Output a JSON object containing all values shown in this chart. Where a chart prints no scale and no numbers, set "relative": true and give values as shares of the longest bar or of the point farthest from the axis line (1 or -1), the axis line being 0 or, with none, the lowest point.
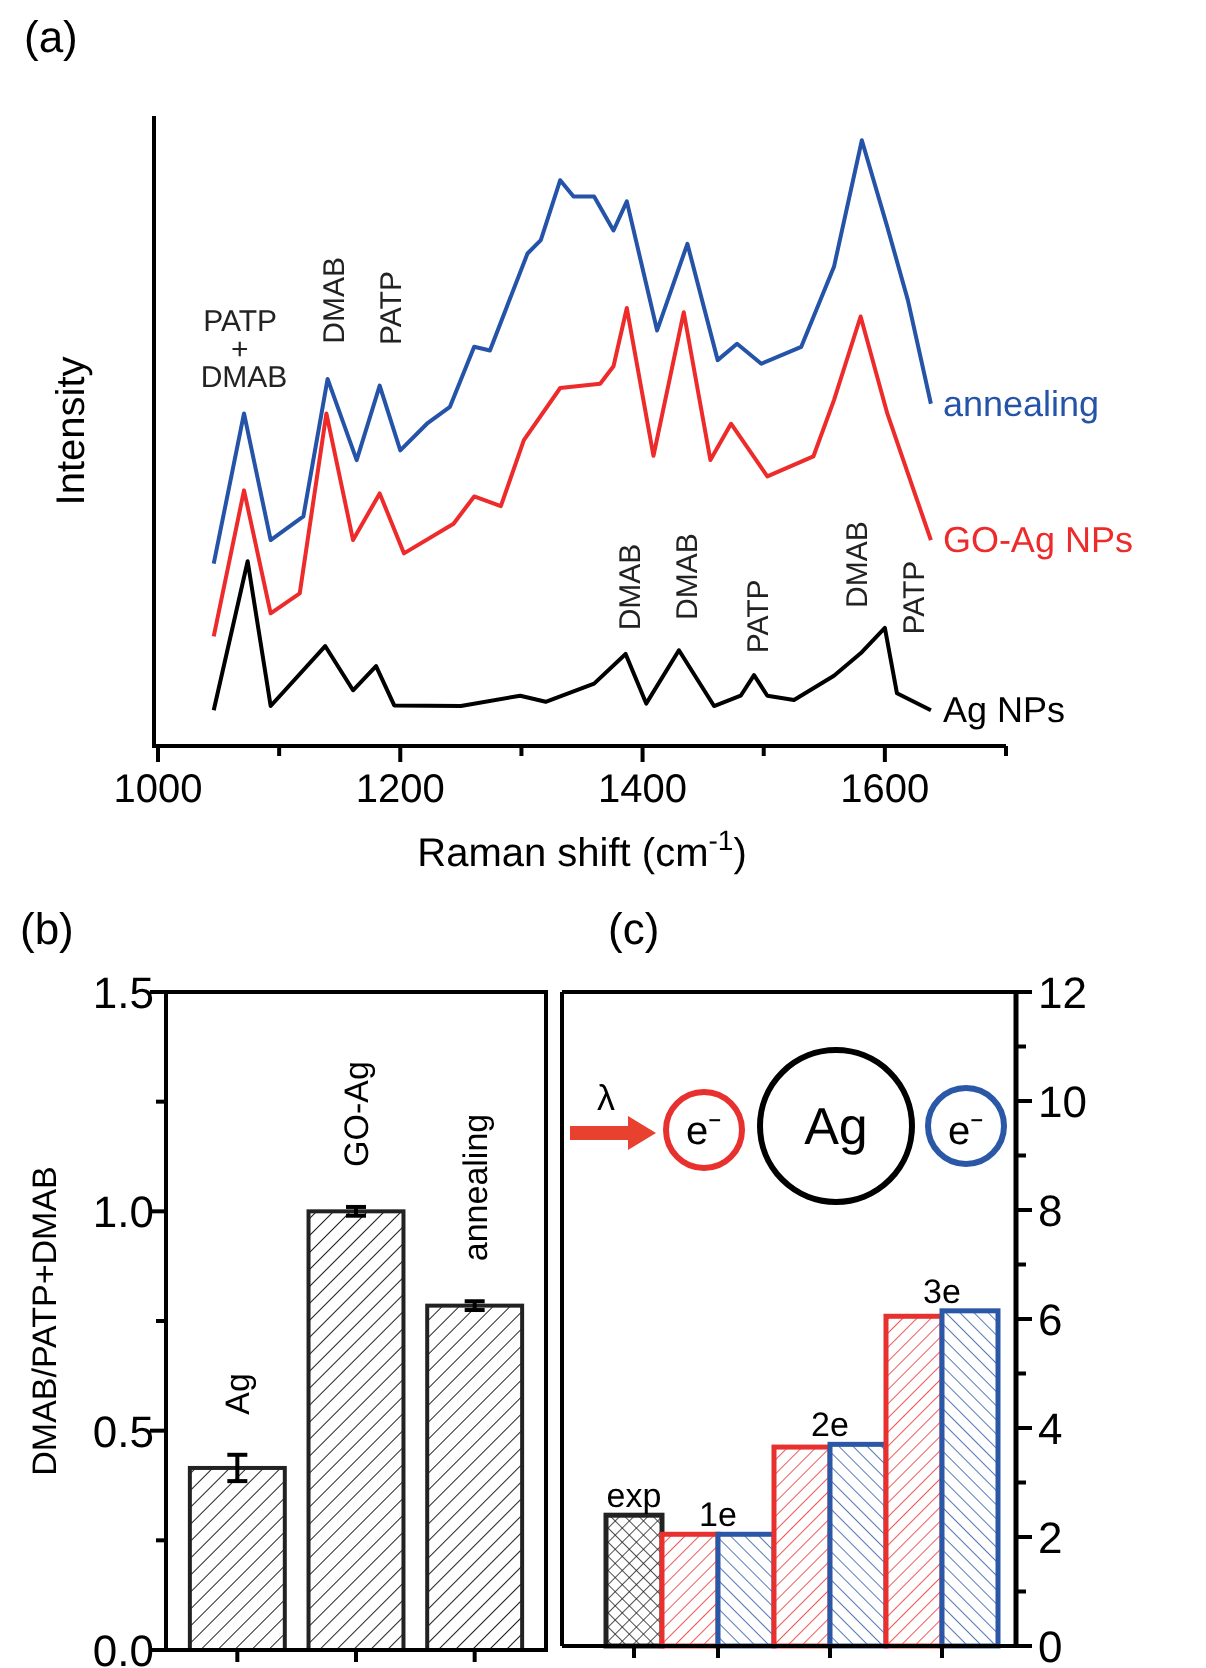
{
  "chart_data": [
    {
      "type": "line",
      "title": "(a)",
      "xlabel": "Raman shift (cm$^{-1}$)",
      "ylabel": "Intensity",
      "relative": true,
      "xlim": [
        1000,
        1700
      ],
      "xticks": [
        1000,
        {
          "value": 1100,
          "label": null
        },
        1200,
        {
          "value": 1300,
          "label": null
        },
        1400,
        {
          "value": 1500,
          "label": null
        },
        1600,
        {
          "value": 1700,
          "label": null
        }
      ],
      "tick_labels": "x",
      "series": [
        {
          "name": "annealing",
          "color": "#2453a8",
          "x": [
            1046,
            1071,
            1093,
            1120,
            1140,
            1164,
            1183,
            1200,
            1222,
            1241,
            1261,
            1274,
            1305,
            1316,
            1332,
            1343,
            1360,
            1376,
            1387,
            1412,
            1437,
            1462,
            1478,
            1498,
            1531,
            1558,
            1581,
            1602,
            1619,
            1638
          ],
          "values": [
            0.301,
            0.549,
            0.34,
            0.379,
            0.606,
            0.472,
            0.595,
            0.488,
            0.532,
            0.56,
            0.659,
            0.653,
            0.813,
            0.835,
            0.934,
            0.907,
            0.907,
            0.851,
            0.899,
            0.686,
            0.829,
            0.637,
            0.664,
            0.631,
            0.659,
            0.791,
            1,
            0.857,
            0.736,
            0.565
          ]
        },
        {
          "name": "GO-Ag NPs",
          "color": "#ee2b2b",
          "x": [
            1046,
            1071,
            1093,
            1117,
            1139,
            1161,
            1183,
            1203,
            1244,
            1261,
            1283,
            1302,
            1332,
            1365,
            1376,
            1387,
            1409,
            1434,
            1456,
            1473,
            1503,
            1541,
            1558,
            1580,
            1602,
            1619,
            1638
          ],
          "values": [
            0.181,
            0.422,
            0.219,
            0.252,
            0.549,
            0.34,
            0.417,
            0.318,
            0.367,
            0.412,
            0.396,
            0.505,
            0.591,
            0.598,
            0.627,
            0.723,
            0.479,
            0.716,
            0.472,
            0.532,
            0.445,
            0.478,
            0.571,
            0.709,
            0.549,
            0.45,
            0.34
          ]
        },
        {
          "name": "Ag NPs",
          "color": "#000000",
          "x": [
            1046,
            1074,
            1093,
            1138,
            1161,
            1180,
            1195,
            1250,
            1299,
            1320,
            1360,
            1386,
            1403,
            1430,
            1459,
            1481,
            1492,
            1503,
            1525,
            1558,
            1580,
            1600,
            1610,
            1638
          ],
          "values": [
            0.059,
            0.305,
            0.066,
            0.165,
            0.092,
            0.132,
            0.067,
            0.066,
            0.083,
            0.073,
            0.103,
            0.152,
            0.07,
            0.158,
            0.066,
            0.083,
            0.117,
            0.083,
            0.076,
            0.116,
            0.153,
            0.195,
            0.087,
            0.059
          ]
        }
      ],
      "annotations": [
        "PATP + DMAB",
        "DMAB",
        "PATP",
        "DMAB",
        "DMAB",
        "PATP",
        "DMAB",
        "PATP"
      ]
    },
    {
      "type": "bar",
      "title": "(b)",
      "ylabel": "DMAB/PATP+DMAB",
      "categories": [
        "Ag",
        "GO-Ag",
        "annealing"
      ],
      "values": [
        0.415,
        1.0,
        0.785
      ],
      "errors": [
        0.03,
        0.01,
        0.01
      ],
      "color": "#222222",
      "ylim": [
        0,
        1.5
      ],
      "yticks": [
        {
          "value": 0,
          "label": "0.0"
        },
        {
          "value": 0.25,
          "label": null
        },
        {
          "value": 0.5,
          "label": "0.5"
        },
        {
          "value": 0.75,
          "label": null
        },
        {
          "value": 1,
          "label": "1.0"
        },
        {
          "value": 1.25,
          "label": null
        },
        {
          "value": 1.5,
          "label": "1.5"
        }
      ],
      "tick_labels": "y"
    },
    {
      "type": "bar",
      "title": "(c)",
      "categories": [
        "exp",
        "1e",
        "2e",
        "3e"
      ],
      "y2lim": [
        0,
        12
      ],
      "y2ticks": [
        0,
        {
          "value": 1,
          "label": null
        },
        2,
        {
          "value": 3,
          "label": null
        },
        4,
        {
          "value": 5,
          "label": null
        },
        6,
        {
          "value": 7,
          "label": null
        },
        8,
        {
          "value": 9,
          "label": null
        },
        10,
        {
          "value": 11,
          "label": null
        },
        12
      ],
      "tick_labels": "y",
      "series": [
        {
          "color": "#222222",
          "axis": "y2",
          "values": [
            2.4,
            null,
            null,
            null
          ]
        },
        {
          "color": "#e8312f",
          "axis": "y2",
          "values": [
            null,
            2.05,
            3.65,
            6.05
          ]
        },
        {
          "color": "#2b57a7",
          "axis": "y2",
          "values": [
            null,
            2.05,
            3.7,
            6.15
          ]
        }
      ],
      "annotations": [
        "λ",
        "e⁻",
        "Ag",
        "e⁻"
      ]
    }
  ]
}
